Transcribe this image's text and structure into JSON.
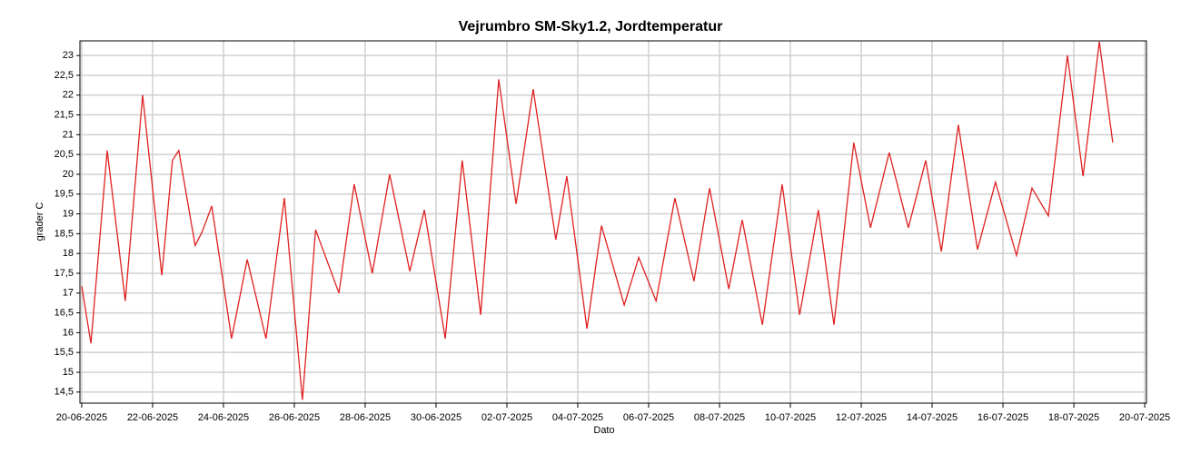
{
  "chart_data": {
    "type": "line",
    "title": "Vejrumbro SM-Sky1.2, Jordtemperatur",
    "x_label": "Dato",
    "y_label": "grader C",
    "x": [
      0,
      0.26,
      0.72,
      1.23,
      1.72,
      2.26,
      2.56,
      2.74,
      3.2,
      3.4,
      3.67,
      4.23,
      4.67,
      5.2,
      5.72,
      6.23,
      6.6,
      7.26,
      7.69,
      8.2,
      8.69,
      9.26,
      9.67,
      10.26,
      10.74,
      11.26,
      11.77,
      12.26,
      12.74,
      13.38,
      13.69,
      14.26,
      14.67,
      15.31,
      15.72,
      16.21,
      16.74,
      17.28,
      17.72,
      18.26,
      18.64,
      19.21,
      19.77,
      20.26,
      20.79,
      21.23,
      21.79,
      22.26,
      22.79,
      23.33,
      23.82,
      24.26,
      24.74,
      25.28,
      25.79,
      26.38,
      26.82,
      27.28,
      27.82,
      28.26,
      28.72,
      29.1
    ],
    "series": [
      {
        "name": "Jordtemperatur",
        "color": "#e02020",
        "values": [
          17.17,
          15.73,
          20.6,
          16.8,
          22.0,
          17.45,
          20.35,
          20.6,
          18.2,
          18.55,
          19.2,
          15.85,
          17.85,
          15.85,
          19.4,
          14.3,
          18.6,
          17.0,
          19.75,
          17.5,
          20.0,
          17.55,
          19.1,
          15.85,
          20.35,
          16.45,
          22.4,
          19.25,
          22.15,
          18.35,
          19.95,
          16.1,
          18.7,
          16.7,
          17.9,
          16.8,
          19.4,
          17.3,
          19.65,
          17.1,
          18.85,
          16.2,
          19.75,
          16.45,
          19.1,
          16.2,
          20.8,
          18.65,
          20.55,
          18.65,
          20.35,
          18.05,
          21.25,
          18.1,
          19.8,
          17.95,
          19.65,
          18.95,
          23.0,
          19.95,
          23.35,
          20.8
        ]
      }
    ],
    "xlim": [
      -0.05,
      30.05
    ],
    "xticks": [
      {
        "value": 0,
        "label": "20-06-2025"
      },
      {
        "value": 2,
        "label": "22-06-2025"
      },
      {
        "value": 4,
        "label": "24-06-2025"
      },
      {
        "value": 6,
        "label": "26-06-2025"
      },
      {
        "value": 8,
        "label": "28-06-2025"
      },
      {
        "value": 10,
        "label": "30-06-2025"
      },
      {
        "value": 12,
        "label": "02-07-2025"
      },
      {
        "value": 14,
        "label": "04-07-2025"
      },
      {
        "value": 16,
        "label": "06-07-2025"
      },
      {
        "value": 18,
        "label": "08-07-2025"
      },
      {
        "value": 20,
        "label": "10-07-2025"
      },
      {
        "value": 22,
        "label": "12-07-2025"
      },
      {
        "value": 24,
        "label": "14-07-2025"
      },
      {
        "value": 26,
        "label": "16-07-2025"
      },
      {
        "value": 28,
        "label": "18-07-2025"
      },
      {
        "value": 30,
        "label": "20-07-2025"
      }
    ],
    "ylim": [
      14.22,
      23.37
    ],
    "yticks": [
      {
        "value": 14.5,
        "label": "14,5"
      },
      15,
      {
        "value": 15.5,
        "label": "15,5"
      },
      16,
      {
        "value": 16.5,
        "label": "16,5"
      },
      17,
      {
        "value": 17.5,
        "label": "17,5"
      },
      18,
      {
        "value": 18.5,
        "label": "18,5"
      },
      19,
      {
        "value": 19.5,
        "label": "19,5"
      },
      20,
      {
        "value": 20.5,
        "label": "20,5"
      },
      21,
      {
        "value": 21.5,
        "label": "21,5"
      },
      22,
      {
        "value": 22.5,
        "label": "22,5"
      },
      23
    ],
    "grid": true
  }
}
